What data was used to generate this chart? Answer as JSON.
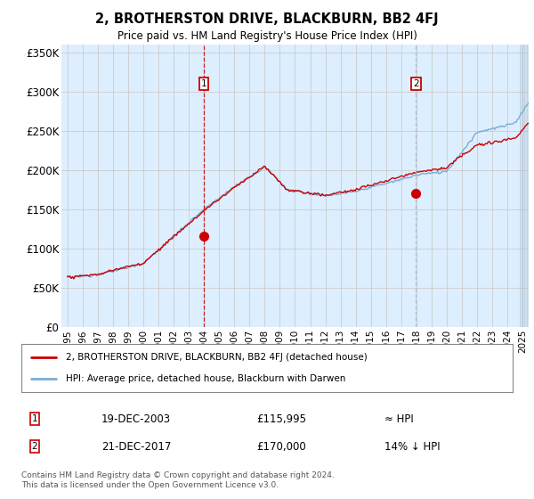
{
  "title": "2, BROTHERSTON DRIVE, BLACKBURN, BB2 4FJ",
  "subtitle": "Price paid vs. HM Land Registry's House Price Index (HPI)",
  "ylabel_ticks": [
    "£0",
    "£50K",
    "£100K",
    "£150K",
    "£200K",
    "£250K",
    "£300K",
    "£350K"
  ],
  "ytick_values": [
    0,
    50000,
    100000,
    150000,
    200000,
    250000,
    300000,
    350000
  ],
  "ylim": [
    0,
    360000
  ],
  "xlim_start": 1994.6,
  "xlim_end": 2025.4,
  "sale1_x": 2003.97,
  "sale1_y": 115995,
  "sale1_label": "1",
  "sale1_date": "19-DEC-2003",
  "sale1_price": "£115,995",
  "sale1_vs_hpi": "≈ HPI",
  "sale2_x": 2017.97,
  "sale2_y": 170000,
  "sale2_label": "2",
  "sale2_date": "21-DEC-2017",
  "sale2_price": "£170,000",
  "sale2_vs_hpi": "14% ↓ HPI",
  "legend_line1": "2, BROTHERSTON DRIVE, BLACKBURN, BB2 4FJ (detached house)",
  "legend_line2": "HPI: Average price, detached house, Blackburn with Darwen",
  "footer": "Contains HM Land Registry data © Crown copyright and database right 2024.\nThis data is licensed under the Open Government Licence v3.0.",
  "line_color_red": "#cc0000",
  "line_color_blue": "#7aadd4",
  "bg_color": "#ddeeff",
  "shade_color": "#ddeeff",
  "grid_color": "#cccccc",
  "sale_marker_color": "#cc0000",
  "sale1_vline_color": "#cc0000",
  "sale2_vline_color": "#aabbcc"
}
